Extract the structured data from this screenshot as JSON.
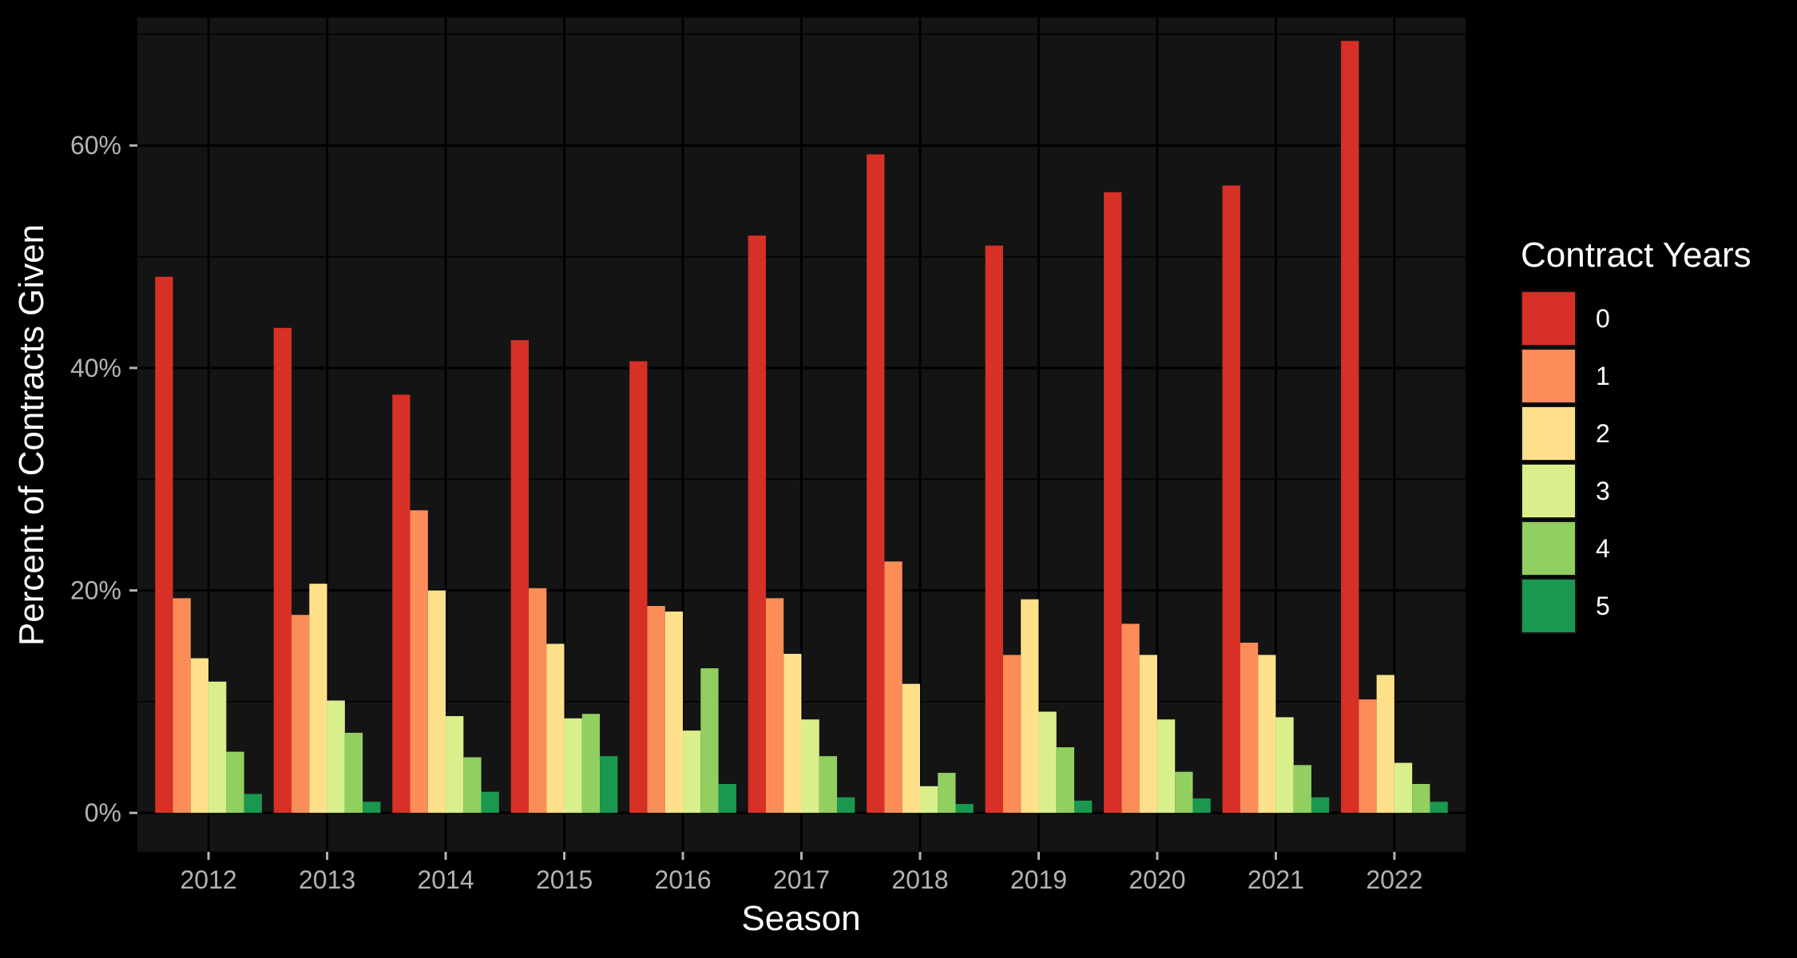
{
  "chart_data": {
    "type": "bar",
    "xlabel": "Season",
    "ylabel": "Percent of Contracts Given",
    "categories": [
      "2012",
      "2013",
      "2014",
      "2015",
      "2016",
      "2017",
      "2018",
      "2019",
      "2020",
      "2021",
      "2022"
    ],
    "ylim": [
      -3.5,
      71.5
    ],
    "y_ticks": [
      0,
      20,
      40,
      60
    ],
    "y_tick_labels": [
      "0%",
      "20%",
      "40%",
      "60%"
    ],
    "grid": true,
    "legend": {
      "title": "Contract Years",
      "position": "right"
    },
    "series": [
      {
        "name": "0",
        "color": "#d73027",
        "values": [
          48.2,
          43.6,
          37.6,
          42.5,
          40.6,
          51.9,
          59.2,
          51.0,
          55.8,
          56.4,
          69.4
        ]
      },
      {
        "name": "1",
        "color": "#fc8d59",
        "values": [
          19.3,
          17.8,
          27.2,
          20.2,
          18.6,
          19.3,
          22.6,
          14.2,
          17.0,
          15.3,
          10.2
        ]
      },
      {
        "name": "2",
        "color": "#fee08b",
        "values": [
          13.9,
          20.6,
          20.0,
          15.2,
          18.1,
          14.3,
          11.6,
          19.2,
          14.2,
          14.2,
          12.4
        ]
      },
      {
        "name": "3",
        "color": "#d9ef8b",
        "values": [
          11.8,
          10.1,
          8.7,
          8.5,
          7.4,
          8.4,
          2.4,
          9.1,
          8.4,
          8.6,
          4.5
        ]
      },
      {
        "name": "4",
        "color": "#91cf60",
        "values": [
          5.5,
          7.2,
          5.0,
          8.9,
          13.0,
          5.1,
          3.6,
          5.9,
          3.7,
          4.3,
          2.6
        ]
      },
      {
        "name": "5",
        "color": "#1a9850",
        "values": [
          1.7,
          1.0,
          1.9,
          5.1,
          2.6,
          1.4,
          0.8,
          1.1,
          1.3,
          1.4,
          1.0
        ]
      }
    ],
    "colors": {
      "background": "#000000",
      "panel": "#141414",
      "grid": "#000000"
    }
  }
}
